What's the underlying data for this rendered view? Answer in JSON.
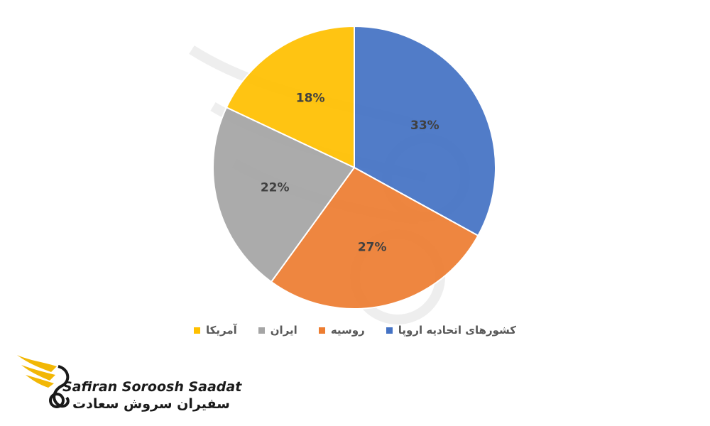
{
  "chart_data": {
    "type": "pie",
    "title": "",
    "start_angle_deg": 0,
    "direction": "clockwise",
    "slices": [
      {
        "name": "کشورهای اتحادیه اروپا",
        "value": 33,
        "label": "33%",
        "color": "#4472C4"
      },
      {
        "name": "روسیه",
        "value": 27,
        "label": "27%",
        "color": "#ED7D31"
      },
      {
        "name": "ایران",
        "value": 22,
        "label": "22%",
        "color": "#A5A5A5"
      },
      {
        "name": "آمریکا",
        "value": 18,
        "label": "18%",
        "color": "#FFC000"
      }
    ],
    "legend_position": "bottom"
  },
  "brand": {
    "name_en": "Safiran Soroosh Saadat",
    "name_fa": "سفیران سروش سعادت",
    "accent_color": "#F2B705",
    "text_color": "#1a1a1a"
  }
}
